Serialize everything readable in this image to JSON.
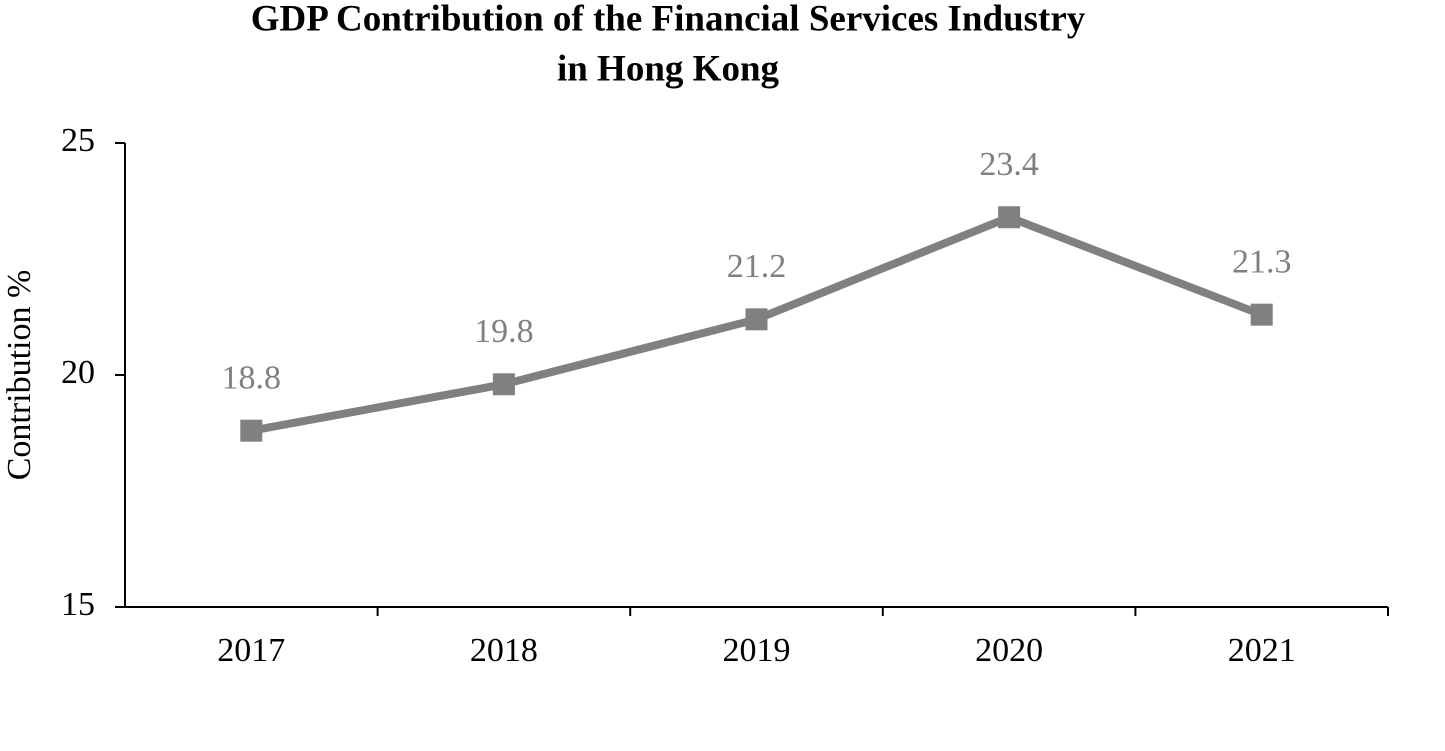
{
  "chart_data": {
    "type": "line",
    "title": [
      "GDP Contribution of the Financial Services Industry",
      "in Hong Kong"
    ],
    "y_label": "Contribution %",
    "categories": [
      "2017",
      "2018",
      "2019",
      "2020",
      "2021"
    ],
    "series": [
      {
        "name": "Contribution",
        "color": "#808080",
        "values": [
          18.8,
          19.8,
          21.2,
          23.4,
          21.3
        ]
      }
    ],
    "ylim": [
      15,
      25
    ],
    "yticks": [
      15,
      20,
      25
    ],
    "grid": false,
    "data_labels": true
  }
}
